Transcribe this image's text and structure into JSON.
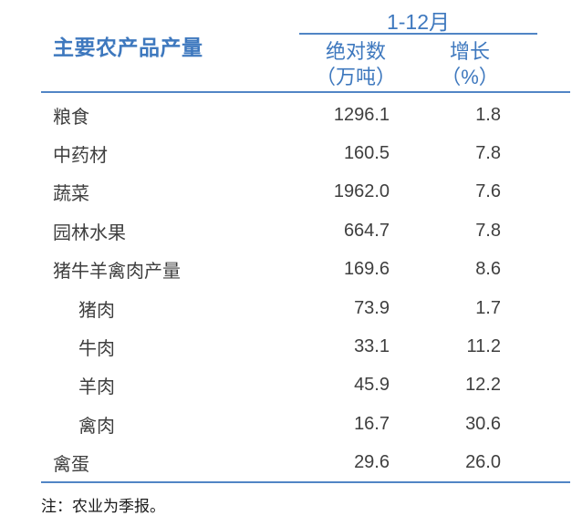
{
  "colors": {
    "accent_text": "#3E78BE",
    "accent_line": "#5185C5",
    "body_text": "#3F3F3F",
    "note_text": "#1A1A1A",
    "background": "#FFFFFF"
  },
  "table": {
    "title": "主要农产品产量",
    "period_label": "1-12月",
    "columns": [
      {
        "line1": "绝对数",
        "line2": "（万吨）"
      },
      {
        "line1": "增长",
        "line2": "（%）"
      }
    ],
    "rows": [
      {
        "label": "粮食",
        "indent": false,
        "absolute": "1296.1",
        "growth": "1.8"
      },
      {
        "label": "中药材",
        "indent": false,
        "absolute": "160.5",
        "growth": "7.8"
      },
      {
        "label": "蔬菜",
        "indent": false,
        "absolute": "1962.0",
        "growth": "7.6"
      },
      {
        "label": "园林水果",
        "indent": false,
        "absolute": "664.7",
        "growth": "7.8"
      },
      {
        "label": "猪牛羊禽肉产量",
        "indent": false,
        "absolute": "169.6",
        "growth": "8.6"
      },
      {
        "label": "猪肉",
        "indent": true,
        "absolute": "73.9",
        "growth": "1.7"
      },
      {
        "label": "牛肉",
        "indent": true,
        "absolute": "33.1",
        "growth": "11.2"
      },
      {
        "label": "羊肉",
        "indent": true,
        "absolute": "45.9",
        "growth": "12.2"
      },
      {
        "label": "禽肉",
        "indent": true,
        "absolute": "16.7",
        "growth": "30.6"
      },
      {
        "label": "禽蛋",
        "indent": false,
        "absolute": "29.6",
        "growth": "26.0"
      }
    ],
    "note": "注：农业为季报。"
  }
}
